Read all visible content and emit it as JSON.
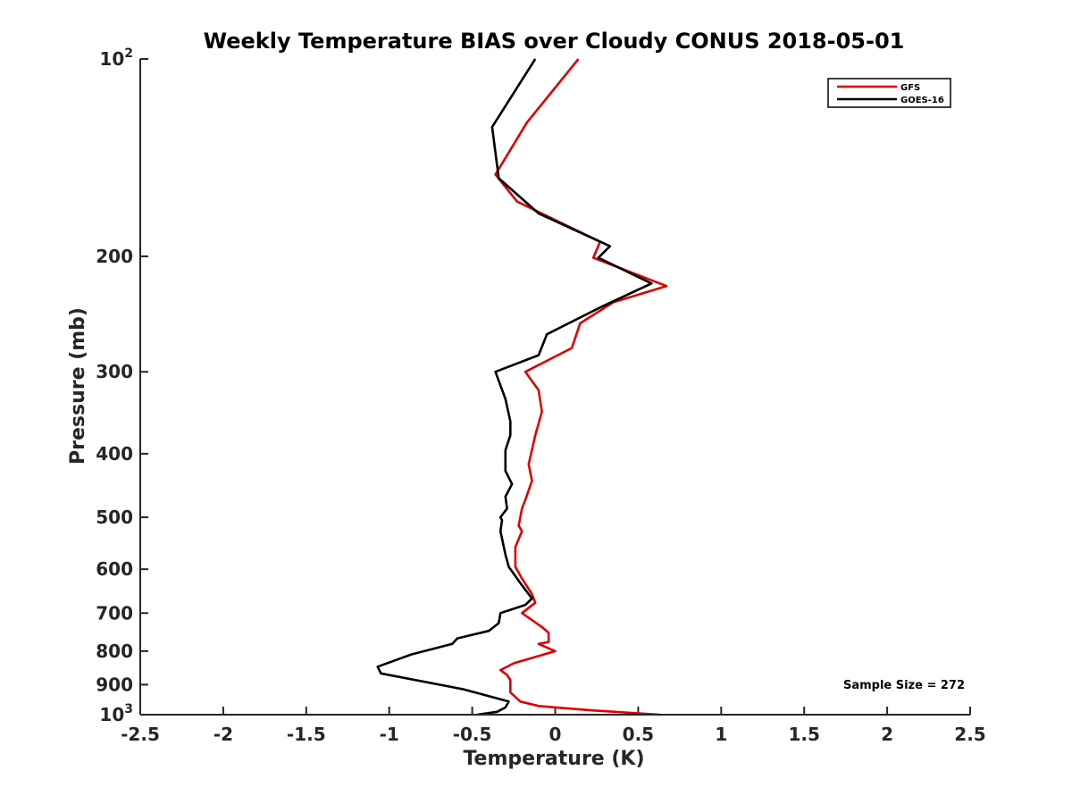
{
  "chart_data": {
    "type": "line",
    "title": "Weekly Temperature BIAS over Cloudy CONUS 2018-05-01",
    "xlabel": "Temperature (K)",
    "ylabel": "Pressure (mb)",
    "xlim": [
      -2.5,
      2.5
    ],
    "ylim": [
      100,
      1000
    ],
    "y_scale": "log",
    "y_reversed": true,
    "x_ticks": [
      "-2.5",
      "-2",
      "-1.5",
      "-1",
      "-0.5",
      "0",
      "0.5",
      "1",
      "1.5",
      "2",
      "2.5"
    ],
    "y_ticks": [
      {
        "value": 100,
        "base": "10",
        "exp": "2"
      },
      {
        "value": 200,
        "label": "200"
      },
      {
        "value": 300,
        "label": "300"
      },
      {
        "value": 400,
        "label": "400"
      },
      {
        "value": 500,
        "label": "500"
      },
      {
        "value": 600,
        "label": "600"
      },
      {
        "value": 700,
        "label": "700"
      },
      {
        "value": 800,
        "label": "800"
      },
      {
        "value": 900,
        "label": "900"
      },
      {
        "value": 1000,
        "base": "10",
        "exp": "3"
      }
    ],
    "grid": false,
    "legend_position": "top-right",
    "annotation": "Sample Size = 272",
    "series": [
      {
        "name": "GFS",
        "color": "#dd0000",
        "points": [
          [
            0.14,
            100
          ],
          [
            -0.17,
            125
          ],
          [
            -0.36,
            150
          ],
          [
            -0.23,
            165
          ],
          [
            0.27,
            190
          ],
          [
            0.23,
            201
          ],
          [
            0.67,
            222
          ],
          [
            0.35,
            235
          ],
          [
            0.15,
            253
          ],
          [
            0.1,
            276
          ],
          [
            -0.18,
            300
          ],
          [
            -0.1,
            320
          ],
          [
            -0.08,
            345
          ],
          [
            -0.12,
            375
          ],
          [
            -0.16,
            415
          ],
          [
            -0.14,
            440
          ],
          [
            -0.18,
            470
          ],
          [
            -0.2,
            485
          ],
          [
            -0.22,
            515
          ],
          [
            -0.2,
            525
          ],
          [
            -0.24,
            555
          ],
          [
            -0.24,
            595
          ],
          [
            -0.2,
            620
          ],
          [
            -0.14,
            655
          ],
          [
            -0.12,
            675
          ],
          [
            -0.2,
            700
          ],
          [
            -0.08,
            735
          ],
          [
            -0.04,
            750
          ],
          [
            -0.04,
            775
          ],
          [
            -0.1,
            780
          ],
          [
            0.0,
            800
          ],
          [
            -0.25,
            835
          ],
          [
            -0.33,
            855
          ],
          [
            -0.29,
            870
          ],
          [
            -0.27,
            885
          ],
          [
            -0.27,
            925
          ],
          [
            -0.21,
            955
          ],
          [
            -0.1,
            970
          ],
          [
            0.22,
            985
          ],
          [
            0.63,
            1000
          ]
        ]
      },
      {
        "name": "GOES-16",
        "color": "#000000",
        "points": [
          [
            -0.12,
            100
          ],
          [
            -0.38,
            127
          ],
          [
            -0.34,
            152
          ],
          [
            -0.1,
            172
          ],
          [
            0.33,
            193
          ],
          [
            0.26,
            201
          ],
          [
            0.58,
            220
          ],
          [
            0.29,
            238
          ],
          [
            -0.05,
            263
          ],
          [
            -0.1,
            283
          ],
          [
            -0.36,
            300
          ],
          [
            -0.3,
            330
          ],
          [
            -0.27,
            357
          ],
          [
            -0.27,
            375
          ],
          [
            -0.3,
            395
          ],
          [
            -0.3,
            425
          ],
          [
            -0.26,
            445
          ],
          [
            -0.3,
            465
          ],
          [
            -0.29,
            485
          ],
          [
            -0.33,
            500
          ],
          [
            -0.32,
            505
          ],
          [
            -0.33,
            525
          ],
          [
            -0.3,
            570
          ],
          [
            -0.28,
            595
          ],
          [
            -0.2,
            635
          ],
          [
            -0.14,
            665
          ],
          [
            -0.18,
            680
          ],
          [
            -0.33,
            700
          ],
          [
            -0.34,
            725
          ],
          [
            -0.4,
            745
          ],
          [
            -0.59,
            765
          ],
          [
            -0.62,
            780
          ],
          [
            -0.87,
            810
          ],
          [
            -1.07,
            845
          ],
          [
            -1.05,
            865
          ],
          [
            -0.55,
            915
          ],
          [
            -0.28,
            955
          ],
          [
            -0.3,
            975
          ],
          [
            -0.35,
            990
          ],
          [
            -0.47,
            1000
          ]
        ]
      }
    ]
  }
}
